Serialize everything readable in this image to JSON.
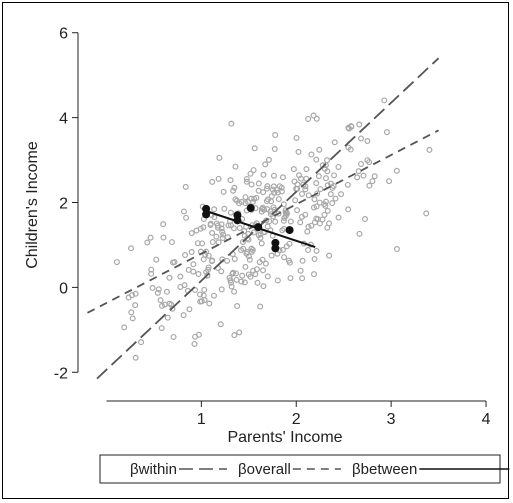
{
  "chart_data": {
    "type": "scatter",
    "xlabel": "Parents' Income",
    "ylabel": "Children's Income",
    "xlim": [
      -0.3,
      4.2
    ],
    "ylim": [
      -2.3,
      6.3
    ],
    "x_ticks": [
      1,
      2,
      3,
      4
    ],
    "y_ticks": [
      -2,
      0,
      2,
      4,
      6
    ],
    "grid": false,
    "legend_placement": "bottom",
    "colors": {
      "points": "#a8a8a8",
      "group_means": "#111111",
      "lines": "#555555"
    },
    "lines": [
      {
        "name": "βwithin",
        "style": "long-dash",
        "x": [
          -0.1,
          3.5
        ],
        "y": [
          -2.15,
          5.4
        ]
      },
      {
        "name": "βoverall",
        "style": "dash",
        "x": [
          -0.2,
          3.5
        ],
        "y": [
          -0.6,
          3.7
        ]
      },
      {
        "name": "βbetween",
        "style": "solid",
        "x": [
          1.05,
          2.2
        ],
        "y": [
          1.8,
          0.95
        ]
      }
    ],
    "group_means": [
      {
        "x": 1.05,
        "y": 1.85
      },
      {
        "x": 1.05,
        "y": 1.72
      },
      {
        "x": 1.38,
        "y": 1.7
      },
      {
        "x": 1.38,
        "y": 1.58
      },
      {
        "x": 1.52,
        "y": 1.87
      },
      {
        "x": 1.6,
        "y": 1.42
      },
      {
        "x": 1.78,
        "y": 1.05
      },
      {
        "x": 1.78,
        "y": 0.92
      },
      {
        "x": 1.93,
        "y": 1.35
      }
    ],
    "points_count": 380
  }
}
